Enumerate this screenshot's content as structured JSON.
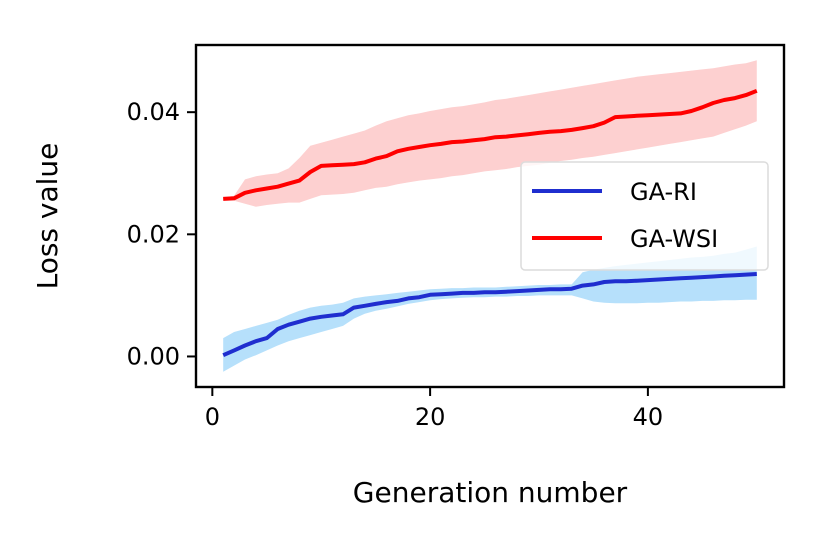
{
  "chart_data": {
    "type": "line",
    "title": "",
    "xlabel": "Generation number",
    "ylabel": "Loss value",
    "xlim": [
      -1.5,
      52.5
    ],
    "ylim": [
      -0.005,
      0.051
    ],
    "xticks": [
      0,
      20,
      40
    ],
    "xtick_labels": [
      "0",
      "20",
      "40"
    ],
    "yticks": [
      0.0,
      0.02,
      0.04
    ],
    "ytick_labels": [
      "0.00",
      "0.02",
      "0.04"
    ],
    "grid": false,
    "legend_position": "center-right",
    "x": [
      1,
      2,
      3,
      4,
      5,
      6,
      7,
      8,
      9,
      10,
      11,
      12,
      13,
      14,
      15,
      16,
      17,
      18,
      19,
      20,
      21,
      22,
      23,
      24,
      25,
      26,
      27,
      28,
      29,
      30,
      31,
      32,
      33,
      34,
      35,
      36,
      37,
      38,
      39,
      40,
      41,
      42,
      43,
      44,
      45,
      46,
      47,
      48,
      49,
      50
    ],
    "series": [
      {
        "name": "GA-RI",
        "color": "#1f2ecf",
        "band_color": "#b6e0fb",
        "values": [
          0.0002,
          0.001,
          0.0018,
          0.0025,
          0.003,
          0.0045,
          0.0052,
          0.0057,
          0.0062,
          0.0065,
          0.0067,
          0.0069,
          0.008,
          0.0083,
          0.0086,
          0.0089,
          0.0091,
          0.0095,
          0.0097,
          0.0101,
          0.0102,
          0.0103,
          0.0104,
          0.0104,
          0.0105,
          0.0105,
          0.0106,
          0.0107,
          0.0108,
          0.0109,
          0.011,
          0.011,
          0.0111,
          0.0116,
          0.0118,
          0.0122,
          0.0123,
          0.0123,
          0.0124,
          0.0125,
          0.0126,
          0.0127,
          0.0128,
          0.0129,
          0.013,
          0.0131,
          0.0132,
          0.0133,
          0.0134,
          0.0135
        ],
        "lower": [
          -0.0025,
          -0.0015,
          -0.0005,
          0.0002,
          0.001,
          0.0018,
          0.0025,
          0.003,
          0.0035,
          0.004,
          0.0045,
          0.005,
          0.0062,
          0.007,
          0.0075,
          0.0078,
          0.0082,
          0.0086,
          0.0089,
          0.0092,
          0.0094,
          0.0095,
          0.0096,
          0.0097,
          0.0097,
          0.0098,
          0.0098,
          0.0099,
          0.0099,
          0.01,
          0.01,
          0.01,
          0.01,
          0.0095,
          0.009,
          0.0088,
          0.0087,
          0.0087,
          0.0087,
          0.0088,
          0.0088,
          0.0089,
          0.009,
          0.009,
          0.0091,
          0.0091,
          0.0092,
          0.0092,
          0.0093,
          0.0093
        ],
        "upper": [
          0.003,
          0.004,
          0.0045,
          0.005,
          0.0055,
          0.006,
          0.0068,
          0.0075,
          0.008,
          0.0083,
          0.0085,
          0.0088,
          0.0095,
          0.0098,
          0.01,
          0.0102,
          0.0104,
          0.0106,
          0.0108,
          0.011,
          0.0111,
          0.0112,
          0.0112,
          0.0113,
          0.0113,
          0.0113,
          0.0114,
          0.0115,
          0.0116,
          0.0117,
          0.0117,
          0.0118,
          0.0118,
          0.0138,
          0.0142,
          0.0145,
          0.0148,
          0.015,
          0.0152,
          0.0154,
          0.0156,
          0.0158,
          0.016,
          0.0162,
          0.0163,
          0.0165,
          0.0168,
          0.017,
          0.0175,
          0.018
        ]
      },
      {
        "name": "GA-WSI",
        "color": "#ff0000",
        "band_color": "#fdd0d0",
        "values": [
          0.0258,
          0.0259,
          0.0268,
          0.0272,
          0.0275,
          0.0278,
          0.0283,
          0.0288,
          0.0302,
          0.0312,
          0.0313,
          0.0314,
          0.0315,
          0.0318,
          0.0324,
          0.0328,
          0.0336,
          0.034,
          0.0343,
          0.0346,
          0.0348,
          0.0351,
          0.0352,
          0.0354,
          0.0356,
          0.0359,
          0.036,
          0.0362,
          0.0364,
          0.0366,
          0.0368,
          0.0369,
          0.0371,
          0.0374,
          0.0377,
          0.0383,
          0.0392,
          0.0393,
          0.0394,
          0.0395,
          0.0396,
          0.0397,
          0.0398,
          0.0402,
          0.0408,
          0.0415,
          0.042,
          0.0423,
          0.0428,
          0.0435
        ],
        "lower": [
          0.0255,
          0.0255,
          0.025,
          0.0245,
          0.0248,
          0.025,
          0.0252,
          0.0252,
          0.0258,
          0.0264,
          0.0265,
          0.0266,
          0.0268,
          0.0272,
          0.0276,
          0.0278,
          0.0282,
          0.0285,
          0.0288,
          0.029,
          0.0292,
          0.0295,
          0.0297,
          0.03,
          0.0303,
          0.0305,
          0.0307,
          0.031,
          0.0312,
          0.0314,
          0.0317,
          0.032,
          0.0322,
          0.0325,
          0.0327,
          0.033,
          0.0333,
          0.0336,
          0.0339,
          0.0342,
          0.0345,
          0.0348,
          0.0351,
          0.0354,
          0.0357,
          0.036,
          0.0366,
          0.0372,
          0.0378,
          0.0385
        ],
        "upper": [
          0.026,
          0.0263,
          0.029,
          0.0295,
          0.0298,
          0.03,
          0.0308,
          0.0325,
          0.0345,
          0.035,
          0.0355,
          0.036,
          0.0365,
          0.037,
          0.0378,
          0.0385,
          0.039,
          0.0395,
          0.0398,
          0.0402,
          0.0405,
          0.0408,
          0.041,
          0.0413,
          0.0416,
          0.042,
          0.0422,
          0.0425,
          0.0428,
          0.0431,
          0.0434,
          0.0437,
          0.044,
          0.0443,
          0.0446,
          0.0449,
          0.0452,
          0.0455,
          0.0458,
          0.046,
          0.0462,
          0.0464,
          0.0466,
          0.0468,
          0.047,
          0.0472,
          0.0475,
          0.0478,
          0.048,
          0.0485
        ]
      }
    ]
  }
}
